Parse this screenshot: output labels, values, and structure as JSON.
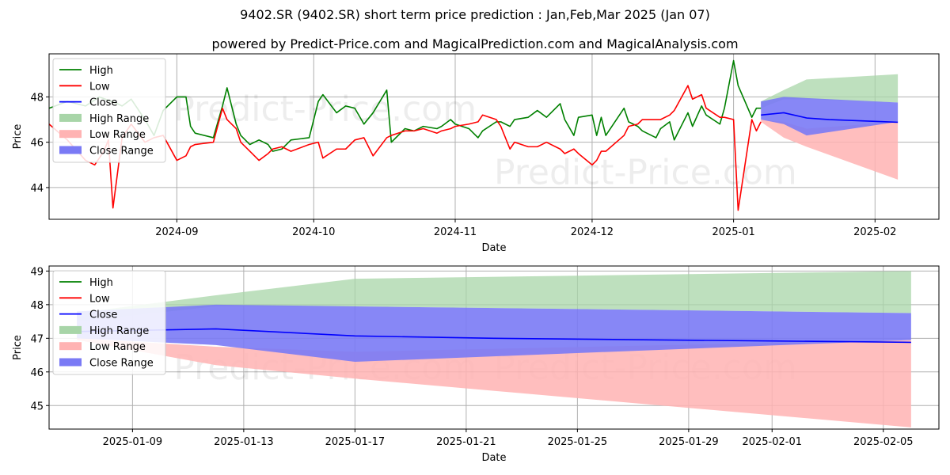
{
  "header": {
    "title": "9402.SR (9402.SR) short term price prediction : Jan,Feb,Mar 2025 (Jan 07)",
    "subtitle": "powered by Predict-Price.com and MagicalPrediction.com and MagicalAnalysis.com"
  },
  "watermark": "Predict-Price.com",
  "colors": {
    "high": "#008000",
    "low": "#ff0000",
    "close": "#0000ff",
    "high_range": "#a8d5a8",
    "low_range": "#ffb3b3",
    "close_range": "#7a7af5"
  },
  "legend": {
    "high": "High",
    "low": "Low",
    "close": "Close",
    "high_range": "High Range",
    "low_range": "Low Range",
    "close_range": "Close Range"
  },
  "chart_data": [
    {
      "type": "line",
      "xlabel": "Date",
      "ylabel": "Price",
      "xlim": [
        "2024-08-04",
        "2025-02-15"
      ],
      "ylim": [
        42.6,
        49.9
      ],
      "x_ticks": [
        "2024-09",
        "2024-10",
        "2024-11",
        "2024-12",
        "2025-01",
        "2025-02"
      ],
      "x_tick_dates": [
        "2024-09-01",
        "2024-10-01",
        "2024-11-01",
        "2024-12-01",
        "2025-01-01",
        "2025-02-01"
      ],
      "y_ticks": [
        44,
        46,
        48
      ],
      "grid": true,
      "legend_position": "top-left",
      "series": [
        {
          "name": "High",
          "x": [
            "2024-08-04",
            "2024-08-08",
            "2024-08-12",
            "2024-08-15",
            "2024-08-19",
            "2024-08-20",
            "2024-08-22",
            "2024-08-25",
            "2024-08-27",
            "2024-08-29",
            "2024-09-01",
            "2024-09-03",
            "2024-09-04",
            "2024-09-05",
            "2024-09-09",
            "2024-09-11",
            "2024-09-12",
            "2024-09-14",
            "2024-09-15",
            "2024-09-17",
            "2024-09-19",
            "2024-09-21",
            "2024-09-22",
            "2024-09-24",
            "2024-09-26",
            "2024-09-30",
            "2024-10-02",
            "2024-10-03",
            "2024-10-06",
            "2024-10-08",
            "2024-10-10",
            "2024-10-12",
            "2024-10-14",
            "2024-10-17",
            "2024-10-18",
            "2024-10-21",
            "2024-10-23",
            "2024-10-25",
            "2024-10-28",
            "2024-10-29",
            "2024-10-31",
            "2024-11-01",
            "2024-11-04",
            "2024-11-06",
            "2024-11-07",
            "2024-11-10",
            "2024-11-11",
            "2024-11-13",
            "2024-11-14",
            "2024-11-17",
            "2024-11-19",
            "2024-11-21",
            "2024-11-24",
            "2024-11-25",
            "2024-11-27",
            "2024-11-28",
            "2024-12-01",
            "2024-12-02",
            "2024-12-03",
            "2024-12-04",
            "2024-12-08",
            "2024-12-09",
            "2024-12-11",
            "2024-12-12",
            "2024-12-15",
            "2024-12-16",
            "2024-12-18",
            "2024-12-19",
            "2024-12-22",
            "2024-12-23",
            "2024-12-25",
            "2024-12-26",
            "2024-12-29",
            "2024-12-30",
            "2025-01-01",
            "2025-01-02",
            "2025-01-05",
            "2025-01-06",
            "2025-01-07"
          ],
          "y": [
            47.5,
            47.8,
            47.6,
            48.0,
            47.7,
            47.6,
            47.9,
            47.0,
            46.3,
            47.4,
            48.0,
            48.0,
            46.7,
            46.4,
            46.2,
            47.6,
            48.4,
            46.8,
            46.3,
            45.9,
            46.1,
            45.9,
            45.6,
            45.7,
            46.1,
            46.2,
            47.8,
            48.1,
            47.3,
            47.6,
            47.5,
            46.8,
            47.3,
            48.3,
            46.0,
            46.6,
            46.5,
            46.7,
            46.6,
            46.7,
            47.0,
            46.8,
            46.6,
            46.2,
            46.5,
            46.9,
            46.9,
            46.7,
            47.0,
            47.1,
            47.4,
            47.1,
            47.7,
            47.0,
            46.3,
            47.1,
            47.2,
            46.3,
            47.1,
            46.3,
            47.5,
            46.9,
            46.7,
            46.5,
            46.2,
            46.6,
            46.9,
            46.1,
            47.3,
            46.7,
            47.6,
            47.2,
            46.8,
            47.5,
            49.6,
            48.5,
            47.1,
            47.5,
            47.5
          ]
        },
        {
          "name": "Low",
          "x": [
            "2024-08-04",
            "2024-08-08",
            "2024-08-12",
            "2024-08-14",
            "2024-08-16",
            "2024-08-17",
            "2024-08-18",
            "2024-08-20",
            "2024-08-22",
            "2024-08-25",
            "2024-08-27",
            "2024-08-29",
            "2024-09-01",
            "2024-09-03",
            "2024-09-04",
            "2024-09-05",
            "2024-09-09",
            "2024-09-11",
            "2024-09-12",
            "2024-09-14",
            "2024-09-15",
            "2024-09-17",
            "2024-09-19",
            "2024-09-21",
            "2024-09-22",
            "2024-09-24",
            "2024-09-26",
            "2024-09-30",
            "2024-10-02",
            "2024-10-03",
            "2024-10-06",
            "2024-10-08",
            "2024-10-10",
            "2024-10-12",
            "2024-10-14",
            "2024-10-17",
            "2024-10-18",
            "2024-10-21",
            "2024-10-23",
            "2024-10-25",
            "2024-10-28",
            "2024-10-29",
            "2024-10-31",
            "2024-11-01",
            "2024-11-04",
            "2024-11-06",
            "2024-11-07",
            "2024-11-10",
            "2024-11-11",
            "2024-11-13",
            "2024-11-14",
            "2024-11-17",
            "2024-11-19",
            "2024-11-21",
            "2024-11-24",
            "2024-11-25",
            "2024-11-27",
            "2024-11-28",
            "2024-12-01",
            "2024-12-02",
            "2024-12-03",
            "2024-12-04",
            "2024-12-08",
            "2024-12-09",
            "2024-12-11",
            "2024-12-12",
            "2024-12-15",
            "2024-12-16",
            "2024-12-18",
            "2024-12-19",
            "2024-12-22",
            "2024-12-23",
            "2024-12-25",
            "2024-12-26",
            "2024-12-29",
            "2024-12-30",
            "2025-01-01",
            "2025-01-02",
            "2025-01-05",
            "2025-01-06",
            "2025-01-07"
          ],
          "y": [
            46.8,
            46.1,
            45.2,
            45.0,
            45.6,
            46.1,
            43.1,
            46.2,
            46.8,
            46.0,
            46.2,
            46.3,
            45.2,
            45.4,
            45.8,
            45.9,
            46.0,
            47.5,
            47.0,
            46.6,
            46.0,
            45.6,
            45.2,
            45.5,
            45.7,
            45.8,
            45.6,
            45.9,
            46.0,
            45.3,
            45.7,
            45.7,
            46.1,
            46.2,
            45.4,
            46.2,
            46.3,
            46.5,
            46.5,
            46.6,
            46.4,
            46.5,
            46.6,
            46.7,
            46.8,
            46.9,
            47.2,
            47.0,
            46.7,
            45.7,
            46.0,
            45.8,
            45.8,
            46.0,
            45.7,
            45.5,
            45.7,
            45.5,
            45.0,
            45.2,
            45.6,
            45.6,
            46.3,
            46.7,
            46.8,
            47.0,
            47.0,
            47.0,
            47.2,
            47.4,
            48.5,
            47.9,
            48.1,
            47.5,
            47.1,
            47.1,
            47.0,
            43.0,
            47.0,
            46.5,
            46.9
          ]
        },
        {
          "name": "Close",
          "x": [
            "2025-01-07",
            "2025-01-12",
            "2025-01-17",
            "2025-01-22",
            "2025-01-27",
            "2025-02-01",
            "2025-02-06"
          ],
          "y": [
            47.2,
            47.3,
            47.07,
            47.0,
            46.96,
            46.92,
            46.88
          ]
        }
      ],
      "ranges": [
        {
          "name": "High Range",
          "x": [
            "2025-01-07",
            "2025-01-12",
            "2025-01-17",
            "2025-02-06"
          ],
          "upper": [
            47.8,
            48.3,
            48.77,
            49.0
          ],
          "lower": [
            47.5,
            47.9,
            47.9,
            47.75
          ]
        },
        {
          "name": "Low Range",
          "x": [
            "2025-01-07",
            "2025-01-12",
            "2025-01-17",
            "2025-02-06"
          ],
          "upper": [
            47.0,
            46.9,
            46.6,
            46.9
          ],
          "lower": [
            46.9,
            46.2,
            45.8,
            44.35
          ]
        },
        {
          "name": "Close Range",
          "x": [
            "2025-01-07",
            "2025-01-12",
            "2025-01-17",
            "2025-02-06"
          ],
          "upper": [
            47.8,
            48.0,
            47.95,
            47.75
          ],
          "lower": [
            47.0,
            46.8,
            46.3,
            46.9
          ]
        }
      ]
    },
    {
      "type": "line",
      "xlabel": "Date",
      "ylabel": "Price",
      "xlim": [
        "2025-01-06",
        "2025-02-07"
      ],
      "ylim": [
        44.3,
        49.15
      ],
      "x_ticks": [
        "2025-01-09",
        "2025-01-13",
        "2025-01-17",
        "2025-01-21",
        "2025-01-25",
        "2025-01-29",
        "2025-02-01",
        "2025-02-05"
      ],
      "y_ticks": [
        45,
        46,
        47,
        48,
        49
      ],
      "grid": true,
      "legend_position": "top-left",
      "series": [
        {
          "name": "High",
          "x": [],
          "y": []
        },
        {
          "name": "Low",
          "x": [],
          "y": []
        },
        {
          "name": "Close",
          "x": [
            "2025-01-07",
            "2025-01-12",
            "2025-01-17",
            "2025-01-22",
            "2025-01-27",
            "2025-02-01",
            "2025-02-06"
          ],
          "y": [
            47.2,
            47.28,
            47.07,
            47.0,
            46.96,
            46.92,
            46.88
          ]
        }
      ],
      "ranges": [
        {
          "name": "High Range",
          "x": [
            "2025-01-07",
            "2025-01-12",
            "2025-01-17",
            "2025-02-06"
          ],
          "upper": [
            47.75,
            48.28,
            48.77,
            49.0
          ],
          "lower": [
            47.5,
            47.95,
            47.95,
            47.75
          ]
        },
        {
          "name": "Low Range",
          "x": [
            "2025-01-07",
            "2025-01-12",
            "2025-01-17",
            "2025-02-06"
          ],
          "upper": [
            47.0,
            46.75,
            46.6,
            46.95
          ],
          "lower": [
            46.95,
            46.2,
            45.8,
            44.35
          ]
        },
        {
          "name": "Close Range",
          "x": [
            "2025-01-07",
            "2025-01-12",
            "2025-01-17",
            "2025-02-06"
          ],
          "upper": [
            47.8,
            48.0,
            47.95,
            47.75
          ],
          "lower": [
            47.0,
            46.8,
            46.3,
            46.95
          ]
        }
      ]
    }
  ]
}
